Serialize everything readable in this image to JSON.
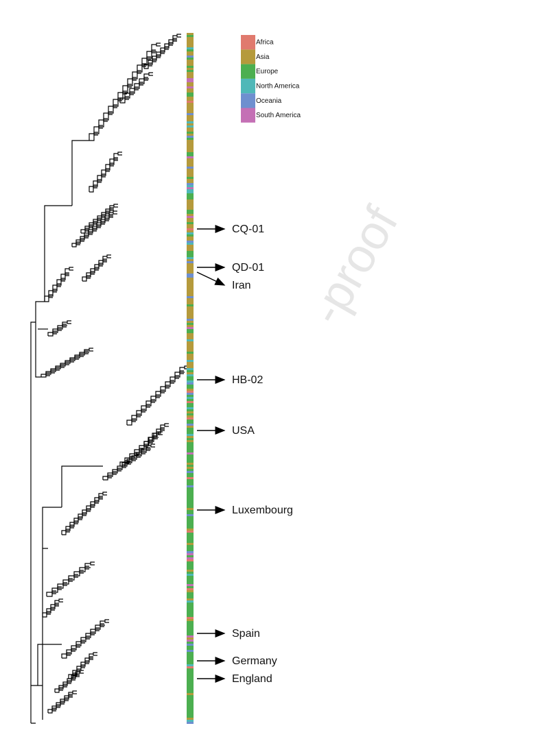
{
  "legend": {
    "items": [
      {
        "label": "Africa",
        "color": "#e07a6e"
      },
      {
        "label": "Asia",
        "color": "#b59a3c"
      },
      {
        "label": "Europe",
        "color": "#4caf50"
      },
      {
        "label": "North America",
        "color": "#4fb8b8"
      },
      {
        "label": "Oceania",
        "color": "#6e8fcf"
      },
      {
        "label": "South America",
        "color": "#c470b5"
      }
    ]
  },
  "annotations": [
    "CQ-01",
    "QD-01",
    "Iran",
    "HB-02",
    "USA",
    "Luxembourg",
    "Spain",
    "Germany",
    "England"
  ],
  "watermark": "-proof"
}
